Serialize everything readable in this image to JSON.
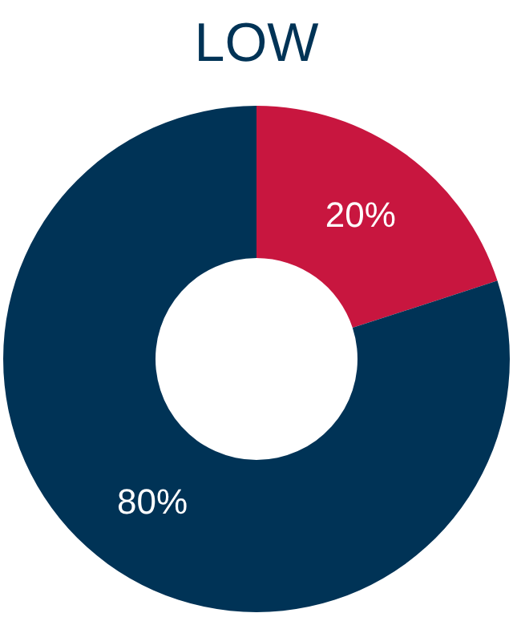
{
  "chart_data": {
    "type": "donut",
    "title": "LOW",
    "categories": [
      null,
      null
    ],
    "values": [
      20,
      80
    ],
    "colors": [
      "#c8163f",
      "#003356"
    ],
    "value_labels": [
      "20%",
      "80%"
    ],
    "legend": false
  }
}
